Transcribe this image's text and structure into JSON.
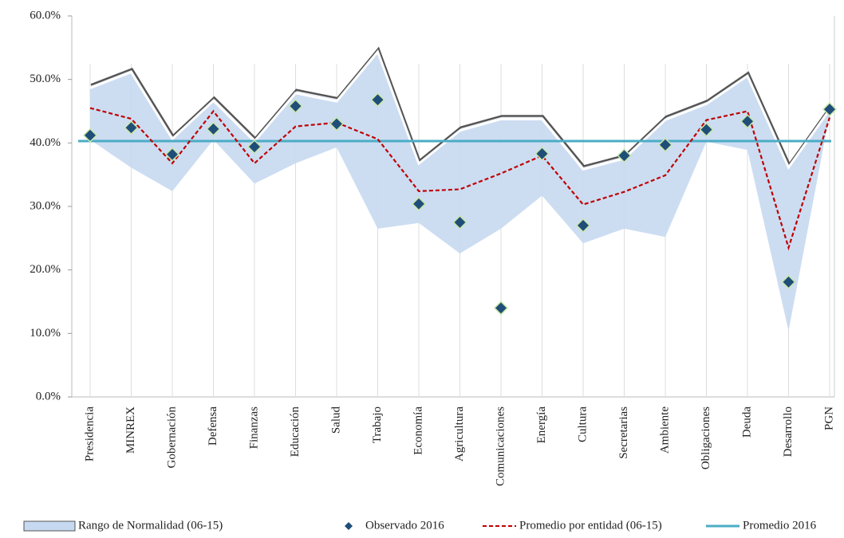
{
  "chart_data": {
    "type": "line",
    "categories": [
      "Presidencia",
      "MINREX",
      "Gobernación",
      "Defensa",
      "Finanzas",
      "Educación",
      "Salud",
      "Trabajo",
      "Economía",
      "Agricultura",
      "Comunicaciones",
      "Energía",
      "Cultura",
      "Secretarias",
      "Ambiente",
      "Obligaciones",
      "Deuda",
      "Desarrollo",
      "PGN"
    ],
    "ylim": [
      0,
      60
    ],
    "yticks": [
      {
        "value": 0,
        "label": "0.0%"
      },
      {
        "value": 10,
        "label": "10.0%"
      },
      {
        "value": 20,
        "label": "20.0%"
      },
      {
        "value": 30,
        "label": "30.0%"
      },
      {
        "value": 40,
        "label": "40.0%"
      },
      {
        "value": 50,
        "label": "50.0%"
      },
      {
        "value": 60,
        "label": "60.0%"
      }
    ],
    "grid": false,
    "legend": "bottom",
    "series": [
      {
        "name": "Rango de Normalidad (06-15)",
        "type": "range",
        "color": "#c6d9f1",
        "upper": [
          48.9,
          51.4,
          40.9,
          46.9,
          40.5,
          48.1,
          46.8,
          54.6,
          37.0,
          42.2,
          44.0,
          44.0,
          36.1,
          37.8,
          43.9,
          46.4,
          50.8,
          36.4,
          45.5
        ],
        "lower": [
          40.5,
          36.1,
          32.4,
          40.5,
          33.6,
          36.8,
          39.3,
          26.5,
          27.4,
          22.6,
          26.5,
          31.7,
          24.2,
          26.5,
          25.2,
          40.2,
          38.9,
          10.4,
          44.5
        ]
      },
      {
        "name": "Observado 2016",
        "type": "scatter",
        "color": "#1f4e79",
        "values": [
          41.2,
          42.4,
          38.2,
          42.2,
          39.4,
          45.8,
          43.0,
          46.8,
          30.4,
          27.5,
          14.0,
          38.3,
          27.0,
          38.0,
          39.7,
          42.1,
          43.4,
          18.1,
          45.3
        ]
      },
      {
        "name": "Promedio por entidad (06-15)",
        "type": "line",
        "dashed": true,
        "color": "#c00000",
        "values": [
          45.5,
          43.8,
          36.8,
          45.0,
          36.8,
          42.6,
          43.2,
          40.6,
          32.4,
          32.7,
          35.2,
          38.0,
          30.3,
          32.3,
          34.9,
          43.6,
          45.0,
          23.5,
          44.0
        ]
      },
      {
        "name": "Promedio 2016",
        "type": "hline",
        "color": "#4bacc6",
        "value": 40.3
      }
    ]
  }
}
